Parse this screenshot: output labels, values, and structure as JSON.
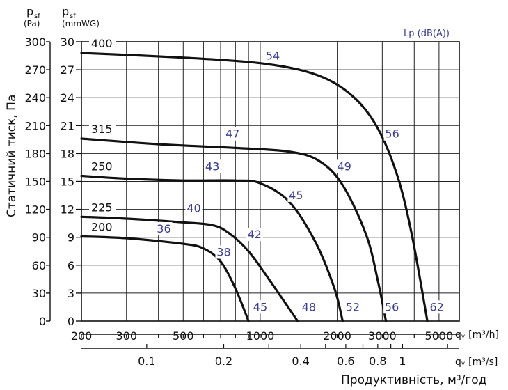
{
  "chart_data": {
    "type": "line",
    "y_axis_label": "Статичний тиск, Па",
    "x_axis_label": "Продуктивність, м³/год",
    "left_unit_top": "p",
    "left_unit_sub": "sf",
    "left_unit_paren": "(Pa)",
    "right_unit_top": "p",
    "right_unit_sub": "sf",
    "right_unit_paren": "(mmWG)",
    "lp_label": "Lp (dB(A))",
    "x_axis_m3h_label": "qᵥ [m³/h]",
    "x_axis_m3s_label": "qᵥ [m³/s]",
    "pa_ticks": [
      "300",
      "270",
      "240",
      "210",
      "180",
      "150",
      "120",
      "90",
      "60",
      "30",
      "0"
    ],
    "mmwg_ticks": [
      "30",
      "27",
      "24",
      "21",
      "18",
      "15",
      "12",
      "9",
      "6",
      "3",
      "0"
    ],
    "x_ticks_m3h": [
      "200",
      "300",
      "500",
      "1000",
      "2000",
      "3000",
      "5000"
    ],
    "x_ticks_m3s": [
      "0.1",
      "0.2",
      "0.4",
      "0.6",
      "0.8",
      "1"
    ],
    "ylim_pa": [
      0,
      300
    ],
    "xlim_m3h": [
      200,
      6000
    ],
    "x_scale": "log",
    "grid": true,
    "colors": {
      "curve": "#111111",
      "noise_label": "#3a3f8f",
      "grid": "#222222"
    },
    "series": [
      {
        "name": "200",
        "points": [
          [
            200,
            91
          ],
          [
            300,
            89
          ],
          [
            500,
            83
          ],
          [
            600,
            78
          ],
          [
            700,
            64
          ],
          [
            800,
            35
          ],
          [
            900,
            0
          ]
        ],
        "noise_labels": [
          {
            "text": "36",
            "at": [
              420,
              95
            ]
          },
          {
            "text": "38",
            "at": [
              720,
              70
            ]
          },
          {
            "text": "45",
            "at": [
              1000,
              11
            ]
          }
        ]
      },
      {
        "name": "225",
        "points": [
          [
            200,
            112
          ],
          [
            300,
            110
          ],
          [
            500,
            106
          ],
          [
            650,
            103
          ],
          [
            750,
            95
          ],
          [
            900,
            75
          ],
          [
            1100,
            42
          ],
          [
            1400,
            0
          ]
        ],
        "noise_labels": [
          {
            "text": "40",
            "at": [
              550,
              117
            ]
          },
          {
            "text": "42",
            "at": [
              950,
              89
            ]
          },
          {
            "text": "48",
            "at": [
              1550,
              11
            ]
          }
        ]
      },
      {
        "name": "250",
        "points": [
          [
            200,
            156
          ],
          [
            300,
            153
          ],
          [
            500,
            151
          ],
          [
            800,
            151
          ],
          [
            1000,
            148
          ],
          [
            1300,
            128
          ],
          [
            1650,
            84
          ],
          [
            1950,
            35
          ],
          [
            2100,
            0
          ]
        ],
        "noise_labels": [
          {
            "text": "43",
            "at": [
              650,
              162
            ]
          },
          {
            "text": "45",
            "at": [
              1380,
              131
            ]
          },
          {
            "text": "52",
            "at": [
              2300,
              11
            ]
          }
        ]
      },
      {
        "name": "315",
        "points": [
          [
            200,
            196
          ],
          [
            400,
            190
          ],
          [
            800,
            186
          ],
          [
            1300,
            182
          ],
          [
            1700,
            172
          ],
          [
            2100,
            146
          ],
          [
            2600,
            92
          ],
          [
            2900,
            40
          ],
          [
            3100,
            0
          ]
        ],
        "noise_labels": [
          {
            "text": "47",
            "at": [
              780,
              197
            ]
          },
          {
            "text": "49",
            "at": [
              2130,
              162
            ]
          },
          {
            "text": "56",
            "at": [
              3270,
              11
            ]
          }
        ]
      },
      {
        "name": "400",
        "points": [
          [
            200,
            288
          ],
          [
            500,
            283
          ],
          [
            1000,
            277
          ],
          [
            1600,
            266
          ],
          [
            2200,
            246
          ],
          [
            2800,
            213
          ],
          [
            3400,
            160
          ],
          [
            3900,
            95
          ],
          [
            4500,
            0
          ]
        ],
        "noise_labels": [
          {
            "text": "54",
            "at": [
              1120,
              281
            ]
          },
          {
            "text": "56",
            "at": [
              3280,
              197
            ]
          },
          {
            "text": "62",
            "at": [
              4900,
              11
            ]
          }
        ]
      }
    ]
  }
}
